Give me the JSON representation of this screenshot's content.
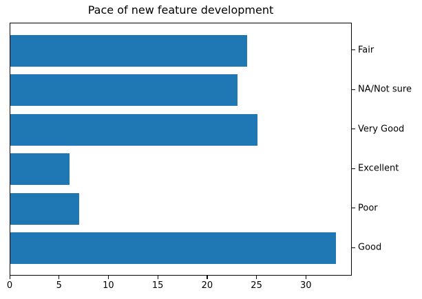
{
  "chart_data": {
    "type": "bar",
    "orientation": "horizontal",
    "title": "Pace of new feature development",
    "categories": [
      "Fair",
      "NA/Not sure",
      "Very Good",
      "Excellent",
      "Poor",
      "Good"
    ],
    "values": [
      24,
      23,
      25,
      6,
      7,
      33
    ],
    "xticks": [
      0,
      5,
      10,
      15,
      20,
      25,
      30
    ],
    "xlim": [
      0,
      34.65
    ],
    "xlabel": "",
    "ylabel": "",
    "bar_color": "#1f77b4",
    "text_color": "#000000",
    "category_label_side": "right",
    "grid": false,
    "legend": false
  }
}
